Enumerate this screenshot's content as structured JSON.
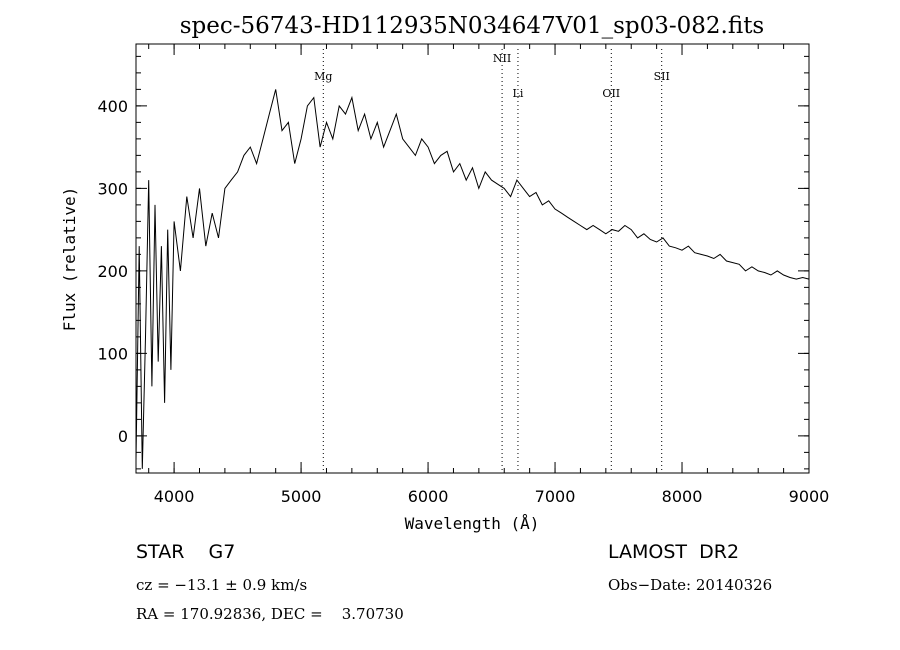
{
  "chart_data": {
    "type": "line",
    "title": "spec-56743-HD112935N034647V01_sp03-082.fits",
    "xlabel": "Wavelength (Å)",
    "ylabel": "Flux (relative)",
    "xlim": [
      3700,
      9000
    ],
    "ylim": [
      -45,
      475
    ],
    "xticks": [
      4000,
      5000,
      6000,
      7000,
      8000,
      9000
    ],
    "yticks": [
      0,
      100,
      200,
      300,
      400
    ],
    "grid": false,
    "series": [
      {
        "x": [
          3700,
          3725,
          3750,
          3775,
          3800,
          3825,
          3850,
          3875,
          3900,
          3925,
          3950,
          3975,
          4000,
          4050,
          4100,
          4150,
          4200,
          4250,
          4300,
          4350,
          4400,
          4450,
          4500,
          4550,
          4600,
          4650,
          4700,
          4750,
          4800,
          4850,
          4900,
          4950,
          5000,
          5050,
          5100,
          5150,
          5200,
          5250,
          5300,
          5350,
          5400,
          5450,
          5500,
          5550,
          5600,
          5650,
          5700,
          5750,
          5800,
          5850,
          5900,
          5950,
          6000,
          6050,
          6100,
          6150,
          6200,
          6250,
          6300,
          6350,
          6400,
          6450,
          6500,
          6550,
          6600,
          6650,
          6700,
          6750,
          6800,
          6850,
          6900,
          6950,
          7000,
          7050,
          7100,
          7150,
          7200,
          7250,
          7300,
          7350,
          7400,
          7450,
          7500,
          7550,
          7600,
          7650,
          7700,
          7750,
          7800,
          7850,
          7900,
          7950,
          8000,
          8050,
          8100,
          8150,
          8200,
          8250,
          8300,
          8350,
          8400,
          8450,
          8500,
          8550,
          8600,
          8650,
          8700,
          8750,
          8800,
          8850,
          8900,
          8950,
          9000
        ],
        "y": [
          -30,
          230,
          -40,
          120,
          310,
          60,
          280,
          90,
          230,
          40,
          250,
          80,
          260,
          200,
          290,
          240,
          300,
          230,
          270,
          240,
          300,
          310,
          320,
          340,
          350,
          330,
          360,
          390,
          420,
          370,
          380,
          330,
          360,
          400,
          410,
          350,
          380,
          360,
          400,
          390,
          410,
          370,
          390,
          360,
          380,
          350,
          370,
          390,
          360,
          350,
          340,
          360,
          350,
          330,
          340,
          345,
          320,
          330,
          310,
          325,
          300,
          320,
          310,
          305,
          300,
          290,
          310,
          300,
          290,
          295,
          280,
          285,
          275,
          270,
          265,
          260,
          255,
          250,
          255,
          250,
          245,
          250,
          248,
          255,
          250,
          240,
          245,
          238,
          235,
          240,
          230,
          228,
          225,
          230,
          222,
          220,
          218,
          215,
          220,
          212,
          210,
          208,
          200,
          205,
          200,
          198,
          195,
          200,
          195,
          192,
          190,
          192,
          190
        ]
      }
    ],
    "annotations": [
      {
        "label": "Mg",
        "x": 5175
      },
      {
        "label": "NII",
        "x": 6583
      },
      {
        "label": "Li",
        "x": 6708
      },
      {
        "label": "OII",
        "x": 7443
      },
      {
        "label": "SII",
        "x": 7840
      }
    ]
  },
  "info": {
    "object_class": "STAR    G7",
    "survey": "LAMOST  DR2",
    "redshift": "cz = −13.1 ± 0.9 km/s",
    "obs_date": "Obs−Date: 20140326",
    "coords": "RA = 170.92836, DEC =    3.70730"
  }
}
